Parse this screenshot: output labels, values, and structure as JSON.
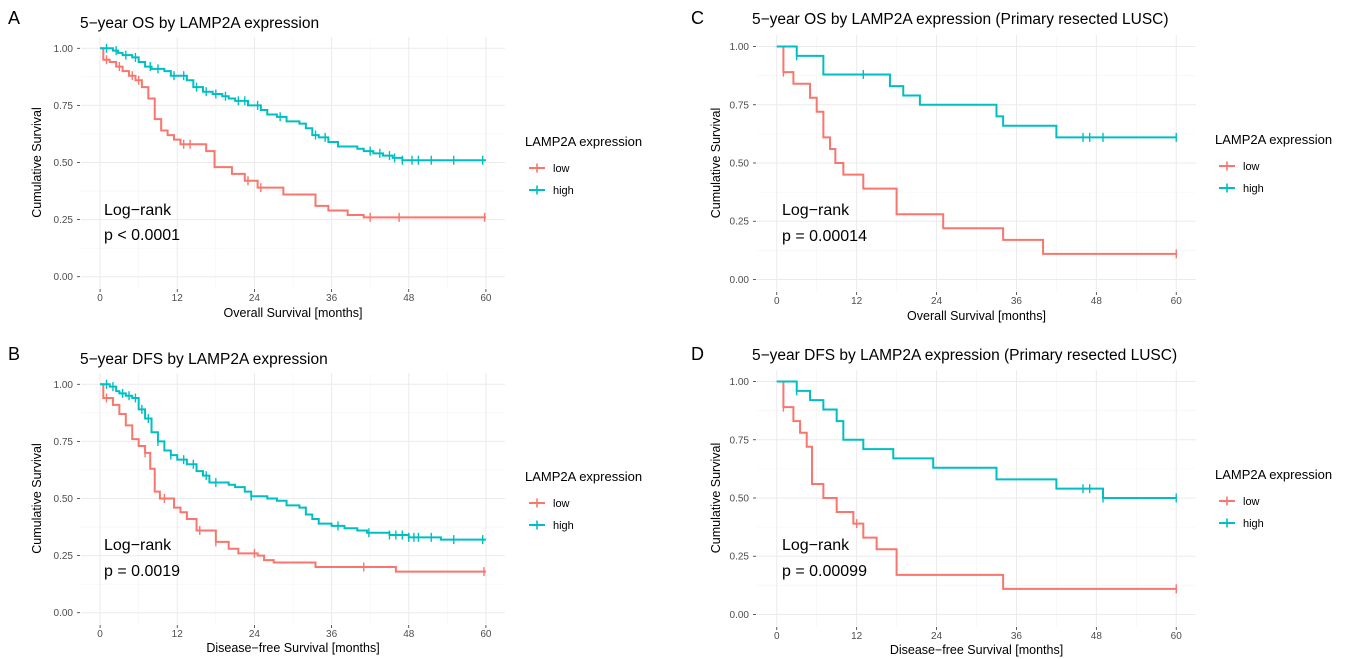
{
  "chart_data": [
    {
      "type": "line",
      "panel": "A",
      "title": "5−year OS by LAMP2A expression",
      "xlabel": "Overall Survival [months]",
      "ylabel": "Cumulative Survival",
      "xlim": [
        0,
        60
      ],
      "ylim": [
        0,
        1
      ],
      "xticks": [
        "0",
        "12",
        "24",
        "36",
        "48",
        "60"
      ],
      "yticks": [
        "0.00",
        "0.25",
        "0.50",
        "0.75",
        "1.00"
      ],
      "grid": true,
      "legend": {
        "title": "LAMP2A expression",
        "placement": "right",
        "entries": [
          "low",
          "high"
        ]
      },
      "annotation": [
        "Log−rank",
        "p < 0.0001"
      ],
      "series": [
        {
          "name": "low",
          "color": "#F8766D",
          "steps": [
            [
              0,
              1.0
            ],
            [
              0.5,
              0.95
            ],
            [
              1.5,
              0.94
            ],
            [
              2.5,
              0.92
            ],
            [
              3.5,
              0.9
            ],
            [
              4.5,
              0.88
            ],
            [
              5.5,
              0.86
            ],
            [
              6.5,
              0.83
            ],
            [
              7.5,
              0.78
            ],
            [
              8.5,
              0.69
            ],
            [
              9.5,
              0.64
            ],
            [
              10.5,
              0.62
            ],
            [
              11.5,
              0.6
            ],
            [
              12.5,
              0.58
            ],
            [
              16.5,
              0.55
            ],
            [
              17.8,
              0.48
            ],
            [
              20.5,
              0.45
            ],
            [
              22.5,
              0.42
            ],
            [
              24.5,
              0.39
            ],
            [
              28.5,
              0.36
            ],
            [
              33.5,
              0.31
            ],
            [
              35.5,
              0.29
            ],
            [
              38.5,
              0.27
            ],
            [
              41,
              0.26
            ],
            [
              60,
              0.26
            ]
          ],
          "censor": [
            1,
            3,
            5,
            6,
            13,
            14,
            23,
            25,
            42,
            46.5,
            59.8
          ]
        },
        {
          "name": "high",
          "color": "#00BFC4",
          "steps": [
            [
              0,
              1.0
            ],
            [
              2,
              0.99
            ],
            [
              2.8,
              0.98
            ],
            [
              3.5,
              0.97
            ],
            [
              5,
              0.96
            ],
            [
              6,
              0.94
            ],
            [
              7,
              0.92
            ],
            [
              8,
              0.91
            ],
            [
              10,
              0.9
            ],
            [
              11,
              0.88
            ],
            [
              13.5,
              0.86
            ],
            [
              14.5,
              0.83
            ],
            [
              16,
              0.81
            ],
            [
              17.5,
              0.8
            ],
            [
              19,
              0.79
            ],
            [
              20,
              0.78
            ],
            [
              21,
              0.77
            ],
            [
              23,
              0.75
            ],
            [
              25,
              0.73
            ],
            [
              26,
              0.71
            ],
            [
              27.5,
              0.7
            ],
            [
              29,
              0.68
            ],
            [
              31,
              0.67
            ],
            [
              32,
              0.65
            ],
            [
              33,
              0.62
            ],
            [
              34,
              0.61
            ],
            [
              35.5,
              0.59
            ],
            [
              37,
              0.57
            ],
            [
              40,
              0.56
            ],
            [
              41,
              0.55
            ],
            [
              42.5,
              0.54
            ],
            [
              44,
              0.53
            ],
            [
              45.5,
              0.52
            ],
            [
              47,
              0.51
            ],
            [
              60,
              0.51
            ]
          ],
          "censor": [
            1,
            2.5,
            4,
            5.5,
            7.8,
            9,
            11.5,
            13,
            15,
            16.5,
            18,
            19.5,
            21.5,
            22.5,
            24.5,
            28,
            33.5,
            35,
            42,
            43.5,
            45,
            45.8,
            47,
            48.5,
            49.5,
            51.5,
            55,
            59.5
          ]
        }
      ]
    },
    {
      "type": "line",
      "panel": "B",
      "title": "5−year DFS by LAMP2A expression",
      "xlabel": "Disease−free Survival [months]",
      "ylabel": "Cumulative Survival",
      "xlim": [
        0,
        60
      ],
      "ylim": [
        0,
        1
      ],
      "xticks": [
        "0",
        "12",
        "24",
        "36",
        "48",
        "60"
      ],
      "yticks": [
        "0.00",
        "0.25",
        "0.50",
        "0.75",
        "1.00"
      ],
      "grid": true,
      "legend": {
        "title": "LAMP2A expression",
        "placement": "right",
        "entries": [
          "low",
          "high"
        ]
      },
      "annotation": [
        "Log−rank",
        "p = 0.0019"
      ],
      "series": [
        {
          "name": "low",
          "color": "#F8766D",
          "steps": [
            [
              0,
              1.0
            ],
            [
              0.5,
              0.94
            ],
            [
              2,
              0.91
            ],
            [
              3,
              0.87
            ],
            [
              4,
              0.82
            ],
            [
              5,
              0.76
            ],
            [
              6,
              0.73
            ],
            [
              7,
              0.7
            ],
            [
              7.8,
              0.63
            ],
            [
              8.5,
              0.53
            ],
            [
              9.3,
              0.5
            ],
            [
              11.5,
              0.46
            ],
            [
              12.5,
              0.44
            ],
            [
              13.5,
              0.41
            ],
            [
              15,
              0.36
            ],
            [
              18,
              0.31
            ],
            [
              20,
              0.28
            ],
            [
              21.5,
              0.26
            ],
            [
              24.5,
              0.25
            ],
            [
              25.5,
              0.23
            ],
            [
              27,
              0.22
            ],
            [
              33.5,
              0.2
            ],
            [
              46,
              0.18
            ],
            [
              60,
              0.18
            ]
          ],
          "censor": [
            1,
            7,
            10,
            15.5,
            18,
            24,
            41,
            59.7
          ]
        },
        {
          "name": "high",
          "color": "#00BFC4",
          "steps": [
            [
              0,
              1.0
            ],
            [
              1.5,
              0.99
            ],
            [
              2.5,
              0.97
            ],
            [
              3,
              0.96
            ],
            [
              4,
              0.95
            ],
            [
              5,
              0.94
            ],
            [
              6,
              0.89
            ],
            [
              7,
              0.85
            ],
            [
              8,
              0.79
            ],
            [
              9,
              0.75
            ],
            [
              10,
              0.71
            ],
            [
              11,
              0.69
            ],
            [
              12,
              0.67
            ],
            [
              13.5,
              0.65
            ],
            [
              15,
              0.62
            ],
            [
              16,
              0.6
            ],
            [
              17,
              0.57
            ],
            [
              20,
              0.56
            ],
            [
              21,
              0.55
            ],
            [
              22.5,
              0.53
            ],
            [
              23.5,
              0.51
            ],
            [
              26,
              0.5
            ],
            [
              27.5,
              0.49
            ],
            [
              29,
              0.47
            ],
            [
              31,
              0.46
            ],
            [
              32,
              0.43
            ],
            [
              33,
              0.41
            ],
            [
              34,
              0.39
            ],
            [
              36,
              0.38
            ],
            [
              38,
              0.37
            ],
            [
              40,
              0.36
            ],
            [
              41.5,
              0.35
            ],
            [
              45,
              0.34
            ],
            [
              48,
              0.33
            ],
            [
              53,
              0.32
            ],
            [
              60,
              0.32
            ]
          ],
          "censor": [
            1,
            2,
            3.5,
            4.5,
            5.5,
            6.5,
            7.5,
            9,
            11,
            13,
            14.5,
            16.5,
            18,
            23.5,
            37,
            41.8,
            45,
            46,
            47,
            48,
            48.8,
            49.5,
            51.5,
            55,
            59.5
          ]
        }
      ]
    },
    {
      "type": "line",
      "panel": "C",
      "title": "5−year OS by LAMP2A expression (Primary resected LUSC)",
      "xlabel": "Overall Survival [months]",
      "ylabel": "Cumulative Survival",
      "xlim": [
        0,
        60
      ],
      "ylim": [
        0,
        1
      ],
      "xticks": [
        "0",
        "12",
        "24",
        "36",
        "48",
        "60"
      ],
      "yticks": [
        "0.00",
        "0.25",
        "0.50",
        "0.75",
        "1.00"
      ],
      "grid": true,
      "legend": {
        "title": "LAMP2A expression",
        "placement": "right",
        "entries": [
          "low",
          "high"
        ]
      },
      "annotation": [
        "Log−rank",
        "p = 0.00014"
      ],
      "series": [
        {
          "name": "low",
          "color": "#F8766D",
          "steps": [
            [
              0,
              1.0
            ],
            [
              1,
              0.89
            ],
            [
              2.5,
              0.84
            ],
            [
              5,
              0.78
            ],
            [
              6,
              0.72
            ],
            [
              7,
              0.61
            ],
            [
              8,
              0.56
            ],
            [
              8.8,
              0.5
            ],
            [
              10,
              0.45
            ],
            [
              13,
              0.39
            ],
            [
              18,
              0.28
            ],
            [
              25,
              0.22
            ],
            [
              34,
              0.17
            ],
            [
              40,
              0.11
            ],
            [
              60,
              0.11
            ]
          ],
          "censor": [
            1,
            60
          ]
        },
        {
          "name": "high",
          "color": "#00BFC4",
          "steps": [
            [
              0,
              1.0
            ],
            [
              3,
              0.96
            ],
            [
              7,
              0.88
            ],
            [
              17,
              0.83
            ],
            [
              19,
              0.79
            ],
            [
              21.5,
              0.75
            ],
            [
              33,
              0.7
            ],
            [
              34,
              0.66
            ],
            [
              42,
              0.61
            ],
            [
              60,
              0.61
            ]
          ],
          "censor": [
            3,
            13,
            46,
            47,
            49,
            60
          ]
        }
      ]
    },
    {
      "type": "line",
      "panel": "D",
      "title": "5−year DFS by LAMP2A expression (Primary resected LUSC)",
      "xlabel": "Disease−free Survival [months]",
      "ylabel": "Cumulative Survival",
      "xlim": [
        0,
        60
      ],
      "ylim": [
        0,
        1
      ],
      "xticks": [
        "0",
        "12",
        "24",
        "36",
        "48",
        "60"
      ],
      "yticks": [
        "0.00",
        "0.25",
        "0.50",
        "0.75",
        "1.00"
      ],
      "grid": true,
      "legend": {
        "title": "LAMP2A expression",
        "placement": "right",
        "entries": [
          "low",
          "high"
        ]
      },
      "annotation": [
        "Log−rank",
        "p = 0.00099"
      ],
      "series": [
        {
          "name": "low",
          "color": "#F8766D",
          "steps": [
            [
              0,
              1.0
            ],
            [
              1,
              0.89
            ],
            [
              2.5,
              0.83
            ],
            [
              3.5,
              0.78
            ],
            [
              4.5,
              0.72
            ],
            [
              5.3,
              0.56
            ],
            [
              7,
              0.5
            ],
            [
              9,
              0.44
            ],
            [
              11.5,
              0.39
            ],
            [
              13,
              0.33
            ],
            [
              15,
              0.28
            ],
            [
              18,
              0.17
            ],
            [
              34,
              0.11
            ],
            [
              60,
              0.11
            ]
          ],
          "censor": [
            1,
            12,
            60
          ]
        },
        {
          "name": "high",
          "color": "#00BFC4",
          "steps": [
            [
              0,
              1.0
            ],
            [
              3,
              0.96
            ],
            [
              5,
              0.92
            ],
            [
              7,
              0.88
            ],
            [
              9,
              0.83
            ],
            [
              10,
              0.75
            ],
            [
              13,
              0.71
            ],
            [
              17.5,
              0.67
            ],
            [
              23.5,
              0.63
            ],
            [
              33,
              0.58
            ],
            [
              42,
              0.54
            ],
            [
              49,
              0.5
            ],
            [
              60,
              0.5
            ]
          ],
          "censor": [
            3,
            46,
            47,
            49,
            60
          ]
        }
      ]
    }
  ]
}
